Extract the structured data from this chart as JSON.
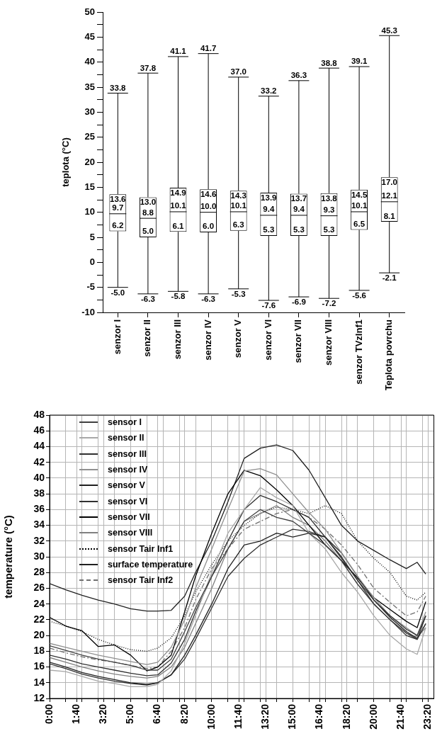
{
  "chart_data": [
    {
      "type": "box",
      "ylabel": "teplota (°C)",
      "categories": [
        "senzor I",
        "senzor II",
        "senzor III",
        "senzor IV",
        "senzor V",
        "senzor VI",
        "senzor VII",
        "senzor VIII",
        "senzor TVzInf1",
        "Teplota povrchu"
      ],
      "boxes": [
        {
          "low": -5.0,
          "q1": 6.2,
          "median": 9.7,
          "q3": 13.6,
          "high": 33.8
        },
        {
          "low": -6.3,
          "q1": 5.0,
          "median": 8.8,
          "q3": 13.0,
          "high": 37.8
        },
        {
          "low": -5.8,
          "q1": 6.1,
          "median": 10.1,
          "q3": 14.9,
          "high": 41.1
        },
        {
          "low": -6.3,
          "q1": 6.0,
          "median": 10.0,
          "q3": 14.6,
          "high": 41.7
        },
        {
          "low": -5.3,
          "q1": 6.3,
          "median": 10.1,
          "q3": 14.3,
          "high": 37.0
        },
        {
          "low": -7.6,
          "q1": 5.3,
          "median": 9.4,
          "q3": 13.9,
          "high": 33.2
        },
        {
          "low": -6.9,
          "q1": 5.3,
          "median": 9.4,
          "q3": 13.7,
          "high": 36.3
        },
        {
          "low": -7.2,
          "q1": 5.3,
          "median": 9.3,
          "q3": 13.8,
          "high": 38.8
        },
        {
          "low": -5.6,
          "q1": 6.5,
          "median": 10.1,
          "q3": 14.5,
          "high": 39.1
        },
        {
          "low": -2.1,
          "q1": 8.1,
          "median": 12.1,
          "q3": 17.0,
          "high": 45.3
        }
      ],
      "color": "#000000",
      "ylim": [
        -10,
        50
      ],
      "yticks": [
        -10,
        {
          "value": -7.5,
          "label": null
        },
        -5,
        {
          "value": -2.5,
          "label": null
        },
        0,
        {
          "value": 2.5,
          "label": null
        },
        5,
        {
          "value": 7.5,
          "label": null
        },
        10,
        {
          "value": 12.5,
          "label": null
        },
        15,
        {
          "value": 17.5,
          "label": null
        },
        20,
        {
          "value": 22.5,
          "label": null
        },
        25,
        {
          "value": 27.5,
          "label": null
        },
        30,
        {
          "value": 32.5,
          "label": null
        },
        35,
        {
          "value": 37.5,
          "label": null
        },
        40,
        {
          "value": 42.5,
          "label": null
        },
        45,
        {
          "value": 47.5,
          "label": null
        },
        50
      ],
      "annotations": [
        {
          "text": "33.8",
          "x": "senzor I",
          "y": 33.8
        },
        {
          "text": "13.6",
          "x": "senzor I",
          "y": 13.6
        },
        {
          "text": "9.7",
          "x": "senzor I",
          "y": 9.7
        },
        {
          "text": "6.2",
          "x": "senzor I",
          "y": 6.2
        },
        {
          "text": "-5.0",
          "x": "senzor I",
          "y": -5.0
        },
        {
          "text": "37.8",
          "x": "senzor II",
          "y": 37.8
        },
        {
          "text": "13.0",
          "x": "senzor II",
          "y": 13.0
        },
        {
          "text": "8.8",
          "x": "senzor II",
          "y": 8.8
        },
        {
          "text": "5.0",
          "x": "senzor II",
          "y": 5.0
        },
        {
          "text": "-6.3",
          "x": "senzor II",
          "y": -6.3
        },
        {
          "text": "41.1",
          "x": "senzor III",
          "y": 41.1
        },
        {
          "text": "14.9",
          "x": "senzor III",
          "y": 14.9
        },
        {
          "text": "10.1",
          "x": "senzor III",
          "y": 10.1
        },
        {
          "text": "6.1",
          "x": "senzor III",
          "y": 6.1
        },
        {
          "text": "-5.8",
          "x": "senzor III",
          "y": -5.8
        },
        {
          "text": "41.7",
          "x": "senzor IV",
          "y": 41.7
        },
        {
          "text": "14.6",
          "x": "senzor IV",
          "y": 14.6
        },
        {
          "text": "10.0",
          "x": "senzor IV",
          "y": 10.0
        },
        {
          "text": "6.0",
          "x": "senzor IV",
          "y": 6.0
        },
        {
          "text": "-6.3",
          "x": "senzor IV",
          "y": -6.3
        },
        {
          "text": "37.0",
          "x": "senzor V",
          "y": 37.0
        },
        {
          "text": "14.3",
          "x": "senzor V",
          "y": 14.3
        },
        {
          "text": "10.1",
          "x": "senzor V",
          "y": 10.1
        },
        {
          "text": "6.3",
          "x": "senzor V",
          "y": 6.3
        },
        {
          "text": "-5.3",
          "x": "senzor V",
          "y": -5.3
        },
        {
          "text": "33.2",
          "x": "senzor VI",
          "y": 33.2
        },
        {
          "text": "13.9",
          "x": "senzor VI",
          "y": 13.9
        },
        {
          "text": "9.4",
          "x": "senzor VI",
          "y": 9.4
        },
        {
          "text": "5.3",
          "x": "senzor VI",
          "y": 5.3
        },
        {
          "text": "-7.6",
          "x": "senzor VI",
          "y": -7.6
        },
        {
          "text": "36.3",
          "x": "senzor VII",
          "y": 36.3
        },
        {
          "text": "13.7",
          "x": "senzor VII",
          "y": 13.7
        },
        {
          "text": "9.4",
          "x": "senzor VII",
          "y": 9.4
        },
        {
          "text": "5.3",
          "x": "senzor VII",
          "y": 5.3
        },
        {
          "text": "-6.9",
          "x": "senzor VII",
          "y": -6.9
        },
        {
          "text": "38.8",
          "x": "senzor VIII",
          "y": 38.8
        },
        {
          "text": "13.8",
          "x": "senzor VIII",
          "y": 13.8
        },
        {
          "text": "9.3",
          "x": "senzor VIII",
          "y": 9.3
        },
        {
          "text": "5.3",
          "x": "senzor VIII",
          "y": 5.3
        },
        {
          "text": "-7.2",
          "x": "senzor VIII",
          "y": -7.2
        },
        {
          "text": "39.1",
          "x": "senzor TVzInf1",
          "y": 39.1
        },
        {
          "text": "14.5",
          "x": "senzor TVzInf1",
          "y": 14.5
        },
        {
          "text": "10.1",
          "x": "senzor TVzInf1",
          "y": 10.1
        },
        {
          "text": "6.5",
          "x": "senzor TVzInf1",
          "y": 6.5
        },
        {
          "text": "-5.6",
          "x": "senzor TVzInf1",
          "y": -5.6
        },
        {
          "text": "45.3",
          "x": "Teplota povrchu",
          "y": 45.3
        },
        {
          "text": "17.0",
          "x": "Teplota povrchu",
          "y": 17.0
        },
        {
          "text": "12.1",
          "x": "Teplota povrchu",
          "y": 12.1
        },
        {
          "text": "8.1",
          "x": "Teplota povrchu",
          "y": 8.1
        },
        {
          "text": "-2.1",
          "x": "Teplota povrchu",
          "y": -2.1
        }
      ],
      "grid": false
    },
    {
      "type": "line",
      "ylabel": "temperature (°C)",
      "legend": "top left",
      "grid": true,
      "marker": "none",
      "x": [
        0,
        1,
        2,
        3,
        4,
        5,
        6,
        6.67,
        7.5,
        8.33,
        9,
        10,
        11,
        12,
        13,
        14,
        15,
        16,
        17,
        18,
        19,
        20,
        21,
        22,
        22.67,
        23.2
      ],
      "series": [
        {
          "name": "sensor I",
          "color": "#404040",
          "line_style": "solid",
          "values": [
            18.7,
            18.1,
            17.5,
            17.0,
            16.6,
            16.2,
            15.6,
            15.6,
            17.0,
            20.5,
            23.5,
            27.5,
            31.0,
            34.5,
            36.0,
            35.0,
            34.5,
            33.0,
            31.5,
            29.5,
            26.5,
            24.0,
            22.0,
            20.3,
            19.5,
            21.5
          ]
        },
        {
          "name": "sensor II",
          "color": "#a8a8a8",
          "line_style": "solid",
          "values": [
            15.6,
            15.4,
            14.8,
            14.2,
            13.9,
            13.5,
            13.5,
            13.8,
            15.5,
            19.0,
            22.5,
            28.0,
            33.0,
            36.0,
            38.8,
            37.5,
            36.5,
            33.0,
            31.0,
            28.0,
            25.5,
            22.5,
            20.0,
            18.3,
            17.6,
            21.0
          ]
        },
        {
          "name": "sensor III",
          "color": "#303030",
          "line_style": "solid",
          "values": [
            17.5,
            17.0,
            16.4,
            16.0,
            15.6,
            15.2,
            14.9,
            15.0,
            16.5,
            19.5,
            23.0,
            27.5,
            32.0,
            36.0,
            37.8,
            37.0,
            36.0,
            35.0,
            32.5,
            29.8,
            27.0,
            24.5,
            22.5,
            20.8,
            20.0,
            22.5
          ]
        },
        {
          "name": "sensor IV",
          "color": "#909090",
          "line_style": "solid",
          "values": [
            19.0,
            18.5,
            18.0,
            17.5,
            17.1,
            16.7,
            16.3,
            16.6,
            18.5,
            22.0,
            26.0,
            31.0,
            36.0,
            40.9,
            41.2,
            40.4,
            38.0,
            35.6,
            33.5,
            30.5,
            27.5,
            24.8,
            22.5,
            21.0,
            20.0,
            23.0
          ]
        },
        {
          "name": "sensor V",
          "color": "#202020",
          "line_style": "solid",
          "values": [
            16.6,
            16.0,
            15.3,
            14.8,
            14.4,
            14.0,
            13.8,
            14.0,
            15.0,
            17.5,
            20.0,
            24.0,
            28.5,
            31.5,
            32.0,
            33.0,
            32.5,
            33.0,
            32.5,
            30.5,
            27.5,
            24.5,
            22.3,
            20.5,
            19.6,
            21.5
          ]
        },
        {
          "name": "sensor VI",
          "color": "#303030",
          "line_style": "solid",
          "values": [
            16.4,
            15.8,
            15.1,
            14.6,
            14.2,
            13.9,
            13.7,
            14.0,
            15.0,
            17.0,
            19.5,
            23.5,
            27.5,
            29.8,
            31.5,
            32.5,
            33.5,
            33.2,
            32.5,
            30.0,
            27.0,
            24.0,
            22.0,
            20.0,
            19.5,
            22.5
          ]
        },
        {
          "name": "sensor VII",
          "color": "#000000",
          "line_style": "solid",
          "values": [
            22.3,
            21.2,
            20.6,
            18.6,
            18.8,
            17.5,
            15.5,
            16.0,
            17.5,
            23.0,
            27.5,
            33.0,
            38.0,
            41.0,
            40.3,
            38.5,
            36.5,
            34.0,
            31.5,
            29.5,
            27.3,
            24.8,
            23.3,
            21.8,
            21.0,
            24.3
          ]
        },
        {
          "name": "sensor VIII",
          "color": "#808080",
          "line_style": "solid",
          "values": [
            17.2,
            16.6,
            16.0,
            15.5,
            15.1,
            14.8,
            14.6,
            14.8,
            16.0,
            18.5,
            21.5,
            26.0,
            31.0,
            34.5,
            35.5,
            36.5,
            35.0,
            34.0,
            32.0,
            29.5,
            26.5,
            24.0,
            22.0,
            20.3,
            19.8,
            21.0
          ]
        },
        {
          "name": "sensor Tair Inf1",
          "color": "#000000",
          "line_style": "dotted",
          "values": [
            21.8,
            21.2,
            20.5,
            19.5,
            18.8,
            18.2,
            18.0,
            18.4,
            19.7,
            22.5,
            25.5,
            29.0,
            32.0,
            34.0,
            35.5,
            36.3,
            36.0,
            35.5,
            36.5,
            35.5,
            32.0,
            29.8,
            28.0,
            25.0,
            24.5,
            25.5
          ]
        },
        {
          "name": "surface temperature",
          "color": "#202020",
          "line_style": "solid",
          "values": [
            26.6,
            25.8,
            25.1,
            24.5,
            24.0,
            23.4,
            23.1,
            23.1,
            23.2,
            25.0,
            28.0,
            32.0,
            37.0,
            42.5,
            43.8,
            44.2,
            43.5,
            41.0,
            37.5,
            34.0,
            32.0,
            30.8,
            29.6,
            28.5,
            29.3,
            27.8
          ]
        },
        {
          "name": "sensor Tair Inf2",
          "color": "#707070",
          "line_style": "dashed",
          "values": [
            18.4,
            17.8,
            17.3,
            16.9,
            16.6,
            16.2,
            15.8,
            16.0,
            18.0,
            21.0,
            24.5,
            28.5,
            31.0,
            33.5,
            34.5,
            35.5,
            36.0,
            35.0,
            33.5,
            31.5,
            29.0,
            26.0,
            24.2,
            22.5,
            23.0,
            25.0
          ]
        }
      ],
      "xlim": [
        0,
        23.7
      ],
      "xticks": [
        {
          "value": 0,
          "label": "0:00"
        },
        {
          "value": 1,
          "label": null
        },
        {
          "value": 1.667,
          "label": "1:40"
        },
        {
          "value": 2,
          "label": null
        },
        {
          "value": 3,
          "label": null
        },
        {
          "value": 3.333,
          "label": "3:20"
        },
        {
          "value": 4,
          "label": null
        },
        {
          "value": 5,
          "label": "5:00"
        },
        {
          "value": 6,
          "label": null
        },
        {
          "value": 6.667,
          "label": "6:40"
        },
        {
          "value": 7,
          "label": null
        },
        {
          "value": 8,
          "label": null
        },
        {
          "value": 8.333,
          "label": "8:20"
        },
        {
          "value": 9,
          "label": null
        },
        {
          "value": 10,
          "label": "10:00"
        },
        {
          "value": 11,
          "label": null
        },
        {
          "value": 11.667,
          "label": "11:40"
        },
        {
          "value": 12,
          "label": null
        },
        {
          "value": 13,
          "label": null
        },
        {
          "value": 13.333,
          "label": "13:20"
        },
        {
          "value": 14,
          "label": null
        },
        {
          "value": 15,
          "label": "15:00"
        },
        {
          "value": 16,
          "label": null
        },
        {
          "value": 16.667,
          "label": "16:40"
        },
        {
          "value": 17,
          "label": null
        },
        {
          "value": 18,
          "label": null
        },
        {
          "value": 18.333,
          "label": "18:20"
        },
        {
          "value": 19,
          "label": null
        },
        {
          "value": 20,
          "label": "20:00"
        },
        {
          "value": 21,
          "label": null
        },
        {
          "value": 21.667,
          "label": "21:40"
        },
        {
          "value": 22,
          "label": null
        },
        {
          "value": 23,
          "label": null
        },
        {
          "value": 23.333,
          "label": "23:20"
        }
      ],
      "ylim": [
        12,
        48
      ],
      "yticks": [
        12,
        14,
        16,
        18,
        20,
        22,
        24,
        26,
        28,
        30,
        32,
        34,
        36,
        38,
        40,
        42,
        44,
        46,
        48
      ]
    }
  ]
}
